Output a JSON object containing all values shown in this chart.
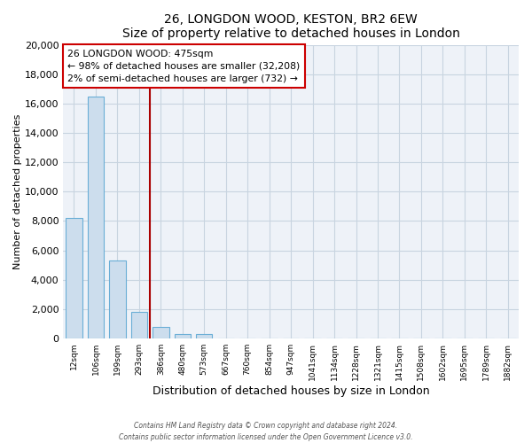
{
  "title": "26, LONGDON WOOD, KESTON, BR2 6EW",
  "subtitle": "Size of property relative to detached houses in London",
  "xlabel": "Distribution of detached houses by size in London",
  "ylabel": "Number of detached properties",
  "bar_labels": [
    "12sqm",
    "106sqm",
    "199sqm",
    "293sqm",
    "386sqm",
    "480sqm",
    "573sqm",
    "667sqm",
    "760sqm",
    "854sqm",
    "947sqm",
    "1041sqm",
    "1134sqm",
    "1228sqm",
    "1321sqm",
    "1415sqm",
    "1508sqm",
    "1602sqm",
    "1695sqm",
    "1789sqm",
    "1882sqm"
  ],
  "bar_values": [
    8200,
    16500,
    5300,
    1800,
    800,
    300,
    300,
    0,
    0,
    0,
    0,
    0,
    0,
    0,
    0,
    0,
    0,
    0,
    0,
    0,
    0
  ],
  "bar_color": "#ccdded",
  "bar_edge_color": "#6aaed6",
  "property_line_x": 3.5,
  "annotation_text1": "26 LONGDON WOOD: 475sqm",
  "annotation_text2": "← 98% of detached houses are smaller (32,208)",
  "annotation_text3": "2% of semi-detached houses are larger (732) →",
  "ylim": [
    0,
    20000
  ],
  "yticks": [
    0,
    2000,
    4000,
    6000,
    8000,
    10000,
    12000,
    14000,
    16000,
    18000,
    20000
  ],
  "line_color": "#aa0000",
  "footer1": "Contains HM Land Registry data © Crown copyright and database right 2024.",
  "footer2": "Contains public sector information licensed under the Open Government Licence v3.0.",
  "bg_color": "#ffffff",
  "plot_bg_color": "#eef2f8",
  "grid_color": "#c8d4e0"
}
